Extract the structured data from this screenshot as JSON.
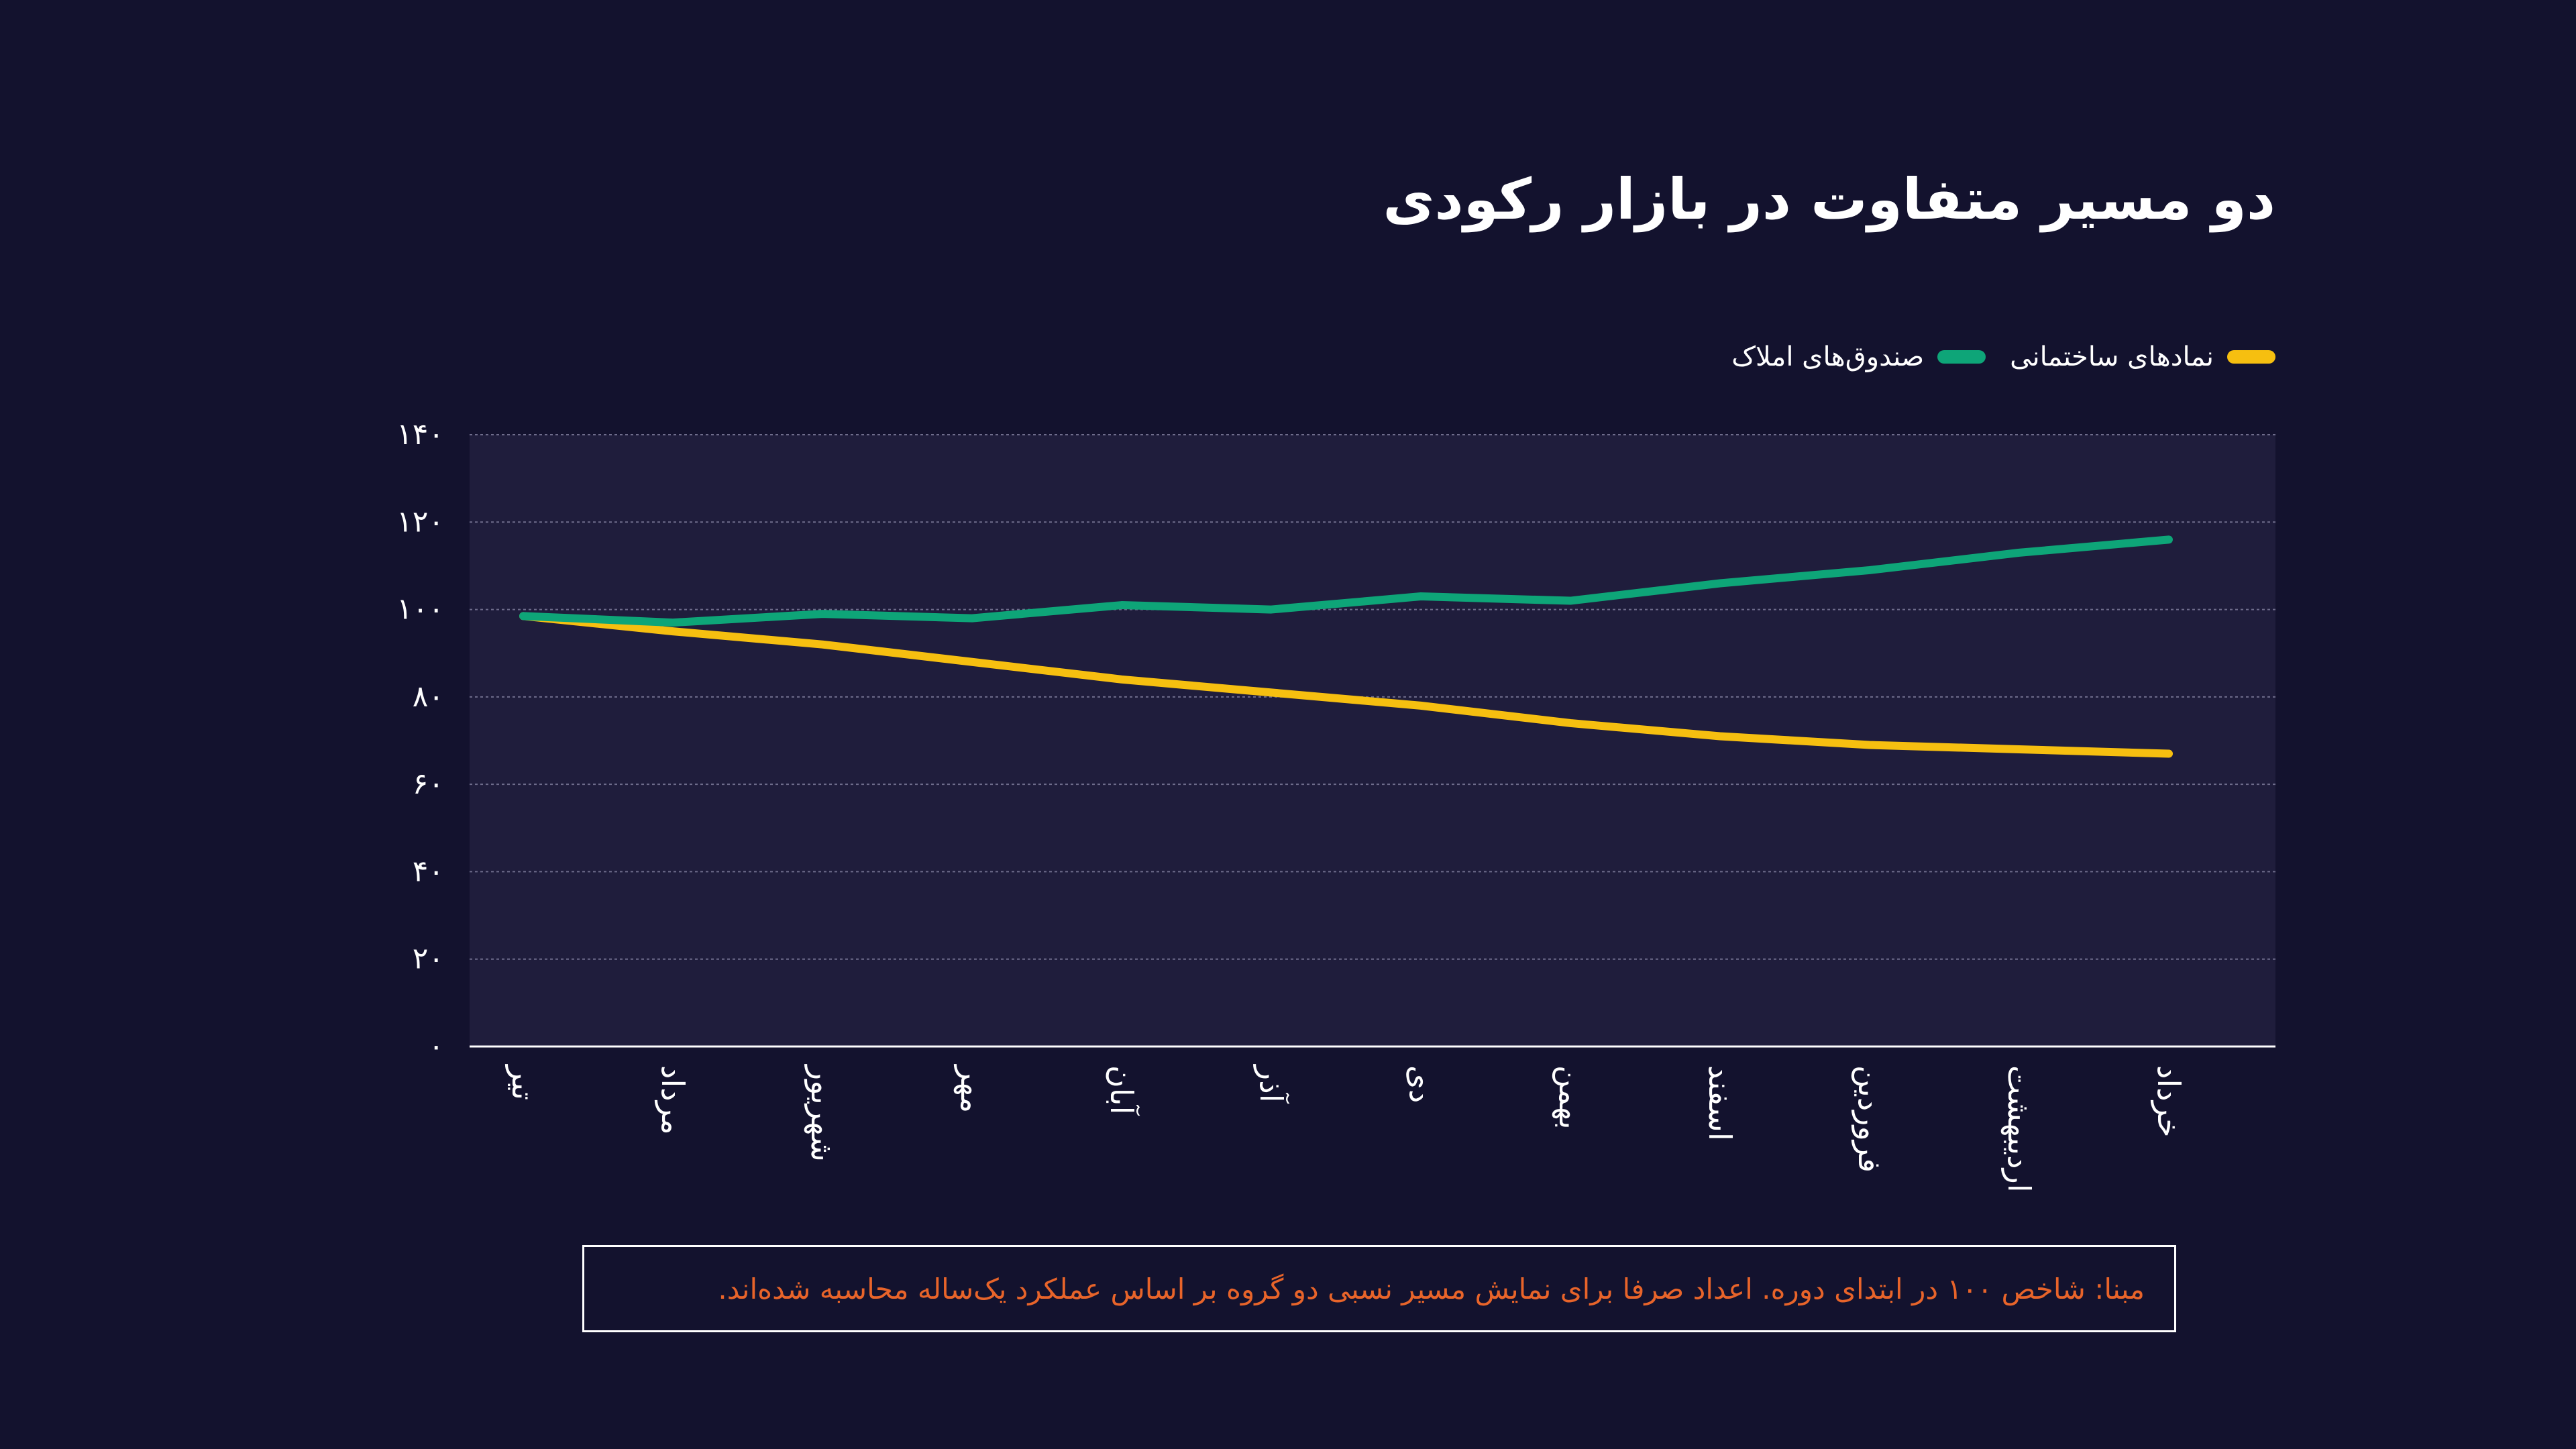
{
  "title": "دو مسیر متفاوت در بازار رکودی",
  "note": "مبنا: شاخص ۱۰۰ در ابتدای دوره. اعداد صرفا برای نمایش مسیر نسبی دو گروه بر اساس عملکرد یک‌ساله محاسبه شده‌اند.",
  "colors": {
    "background": "#13122e",
    "plot_background": "#1f1d3c",
    "grid": "#6f6d8c",
    "axis": "#ffffff",
    "text": "#ffffff",
    "note": "#e8642a",
    "construction": "#f6bf10",
    "funds": "#0ea578"
  },
  "chart_data": {
    "type": "line",
    "title": "دو مسیر متفاوت در بازار رکودی",
    "xlabel": "",
    "ylabel": "",
    "ylim": [
      0,
      140
    ],
    "yticks": [
      0,
      20,
      40,
      60,
      80,
      100,
      120,
      140
    ],
    "ytick_labels": [
      "۰",
      "۲۰",
      "۴۰",
      "۶۰",
      "۸۰",
      "۱۰۰",
      "۱۲۰",
      "۱۴۰"
    ],
    "grid": true,
    "legend_position": "top-right",
    "categories": [
      "تیر",
      "مرداد",
      "شهریور",
      "مهر",
      "آبان",
      "آذر",
      "دی",
      "بهمن",
      "اسفند",
      "فروردین",
      "اردیبهشت",
      "خرداد"
    ],
    "series": [
      {
        "name": "نمادهای ساختمانی",
        "color": "#f6bf10",
        "values": [
          98.5,
          95,
          92,
          88,
          84,
          81,
          78,
          74,
          71,
          69,
          68,
          67
        ]
      },
      {
        "name": "صندوق‌های املاک",
        "color": "#0ea578",
        "values": [
          98.5,
          97,
          99,
          98,
          101,
          100,
          103,
          102,
          106,
          109,
          113,
          116
        ]
      }
    ]
  }
}
